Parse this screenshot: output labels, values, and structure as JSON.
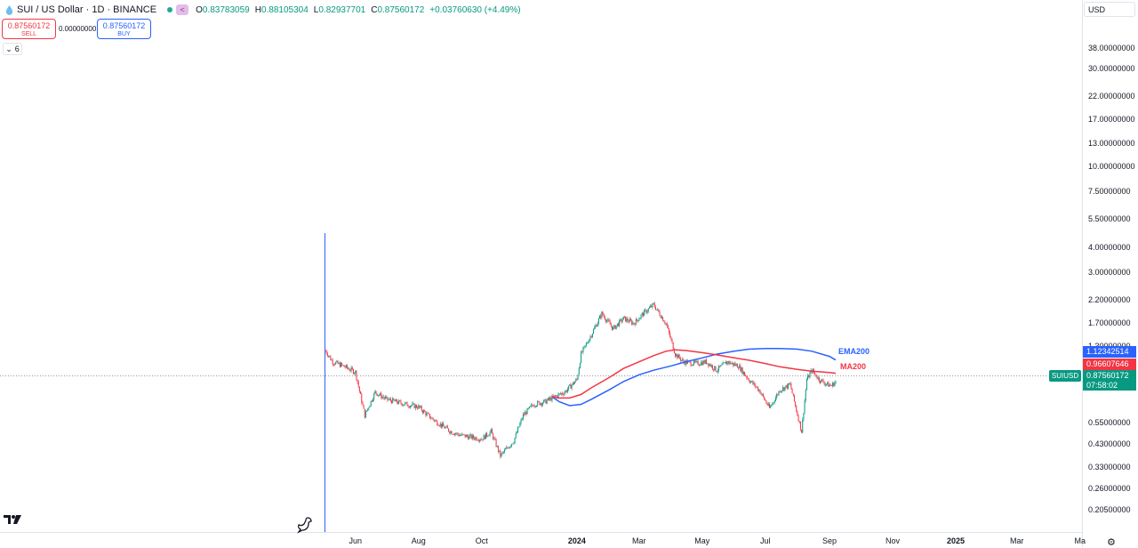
{
  "header": {
    "symbol_title": "SUI / US Dollar · 1D · BINANCE",
    "ohlc": {
      "o_label": "O",
      "o_value": "0.83783059",
      "h_label": "H",
      "h_value": "0.88105304",
      "l_label": "L",
      "l_value": "0.82937701",
      "c_label": "C",
      "c_value": "0.87560172"
    },
    "change": "+0.03760630 (+4.49%)",
    "status_icon": "green-dot-icon",
    "share_icon": "share-icon"
  },
  "trade_panel": {
    "sell_price": "0.87560172",
    "sell_label": "SELL",
    "spread": "0.00000000",
    "buy_price": "0.87560172",
    "buy_label": "BUY"
  },
  "indicators_toggle": {
    "icon": "chevron-down-icon",
    "count": "6"
  },
  "currency": "USD",
  "price_axis": {
    "ticks": [
      "38.00000000",
      "30.00000000",
      "22.00000000",
      "17.00000000",
      "13.00000000",
      "10.00000000",
      "7.50000000",
      "5.50000000",
      "4.00000000",
      "3.00000000",
      "2.20000000",
      "1.70000000",
      "1.30000000",
      "0.55000000",
      "0.43000000",
      "0.33000000",
      "0.26000000",
      "0.20500000"
    ],
    "ema_value": "1.12342514",
    "ma_value": "0.96607646",
    "last_price": "0.87560172",
    "countdown": "07:58:02",
    "symbol_tag": "SUIUSD"
  },
  "time_axis": {
    "labels": [
      {
        "text": "Jun",
        "bold": false
      },
      {
        "text": "Aug",
        "bold": false
      },
      {
        "text": "Oct",
        "bold": false
      },
      {
        "text": "2024",
        "bold": true
      },
      {
        "text": "Mar",
        "bold": false
      },
      {
        "text": "May",
        "bold": false
      },
      {
        "text": "Jul",
        "bold": false
      },
      {
        "text": "Sep",
        "bold": false
      },
      {
        "text": "Nov",
        "bold": false
      },
      {
        "text": "2025",
        "bold": true
      },
      {
        "text": "Mar",
        "bold": false
      },
      {
        "text": "Ma",
        "bold": false
      }
    ]
  },
  "colors": {
    "up": "#089981",
    "down": "#f23645",
    "ema": "#2962ff",
    "ma": "#f23645",
    "crosshair": "#2962ff"
  },
  "chart_data": {
    "type": "line",
    "scale": "log",
    "title": "SUI / US Dollar · 1D · BINANCE",
    "xlabel": "",
    "ylabel": "",
    "ylim": [
      0.2,
      38.0
    ],
    "grid": false,
    "series": [
      {
        "name": "SUIUSD",
        "x": [
          "2023-05-03",
          "2023-05-10",
          "2023-05-20",
          "2023-06-01",
          "2023-06-10",
          "2023-06-20",
          "2023-07-01",
          "2023-07-10",
          "2023-07-20",
          "2023-08-01",
          "2023-08-10",
          "2023-08-20",
          "2023-09-01",
          "2023-09-10",
          "2023-09-20",
          "2023-10-01",
          "2023-10-10",
          "2023-10-19",
          "2023-11-01",
          "2023-11-10",
          "2023-11-20",
          "2023-12-01",
          "2023-12-10",
          "2023-12-20",
          "2024-01-01",
          "2024-01-05",
          "2024-01-15",
          "2024-01-25",
          "2024-02-05",
          "2024-02-15",
          "2024-02-25",
          "2024-03-05",
          "2024-03-15",
          "2024-03-27",
          "2024-04-05",
          "2024-04-13",
          "2024-04-25",
          "2024-05-05",
          "2024-05-15",
          "2024-05-25",
          "2024-06-05",
          "2024-06-15",
          "2024-06-25",
          "2024-07-05",
          "2024-07-15",
          "2024-07-25",
          "2024-08-05",
          "2024-08-10",
          "2024-08-15",
          "2024-08-22",
          "2024-08-30",
          "2024-09-03",
          "2024-09-07"
        ],
        "values": [
          1.25,
          1.1,
          1.05,
          0.98,
          0.6,
          0.78,
          0.72,
          0.7,
          0.68,
          0.66,
          0.6,
          0.55,
          0.5,
          0.48,
          0.47,
          0.46,
          0.5,
          0.38,
          0.45,
          0.6,
          0.68,
          0.7,
          0.74,
          0.78,
          0.9,
          1.2,
          1.5,
          1.9,
          1.6,
          1.8,
          1.7,
          1.9,
          2.1,
          1.7,
          1.2,
          1.1,
          1.08,
          1.1,
          1.0,
          1.1,
          1.05,
          0.9,
          0.8,
          0.65,
          0.8,
          0.85,
          0.5,
          0.9,
          1.0,
          0.9,
          0.85,
          0.84,
          0.88
        ]
      },
      {
        "name": "EMA200",
        "x": [
          "2023-12-08",
          "2023-12-15",
          "2023-12-25",
          "2024-01-05",
          "2024-01-15",
          "2024-02-01",
          "2024-02-15",
          "2024-03-01",
          "2024-03-15",
          "2024-04-01",
          "2024-04-15",
          "2024-05-01",
          "2024-05-15",
          "2024-06-01",
          "2024-06-15",
          "2024-07-01",
          "2024-07-15",
          "2024-08-01",
          "2024-08-15",
          "2024-09-01",
          "2024-09-07"
        ],
        "values": [
          0.74,
          0.7,
          0.67,
          0.68,
          0.72,
          0.8,
          0.88,
          0.95,
          1.0,
          1.05,
          1.1,
          1.15,
          1.2,
          1.24,
          1.27,
          1.28,
          1.28,
          1.27,
          1.24,
          1.17,
          1.123
        ]
      },
      {
        "name": "MA200",
        "x": [
          "2023-12-08",
          "2023-12-15",
          "2023-12-25",
          "2024-01-05",
          "2024-01-15",
          "2024-02-01",
          "2024-02-15",
          "2024-03-01",
          "2024-03-15",
          "2024-03-27",
          "2024-04-05",
          "2024-04-15",
          "2024-05-01",
          "2024-05-15",
          "2024-06-01",
          "2024-06-15",
          "2024-07-01",
          "2024-07-15",
          "2024-08-01",
          "2024-08-15",
          "2024-09-01",
          "2024-09-07"
        ],
        "values": [
          0.74,
          0.73,
          0.73,
          0.76,
          0.82,
          0.92,
          1.02,
          1.1,
          1.18,
          1.24,
          1.26,
          1.25,
          1.22,
          1.19,
          1.15,
          1.12,
          1.08,
          1.04,
          1.01,
          0.99,
          0.975,
          0.966
        ]
      }
    ]
  }
}
